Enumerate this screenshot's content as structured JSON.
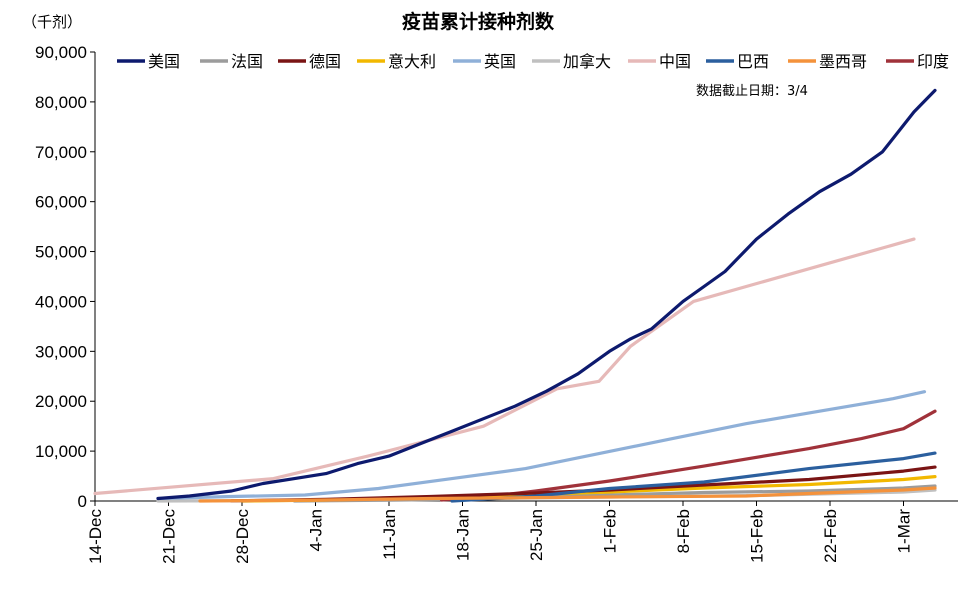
{
  "chart_data": {
    "type": "line",
    "title": "疫苗累计接种剂数",
    "unit_label": "（千剂）",
    "annotation": "数据截止日期：3/4",
    "x_ticks": [
      "14-Dec",
      "21-Dec",
      "28-Dec",
      "4-Jan",
      "11-Jan",
      "18-Jan",
      "25-Jan",
      "1-Feb",
      "8-Feb",
      "15-Feb",
      "22-Feb",
      "1-Mar"
    ],
    "x_tick_days": [
      0,
      7,
      14,
      21,
      28,
      35,
      42,
      49,
      56,
      63,
      70,
      77
    ],
    "y_ticks": [
      "0",
      "10,000",
      "20,000",
      "30,000",
      "40,000",
      "50,000",
      "60,000",
      "70,000",
      "80,000",
      "90,000"
    ],
    "ylim": [
      0,
      90000
    ],
    "grid": false,
    "legend_position": "top",
    "series": [
      {
        "name": "美国",
        "color": "#0d1a6e",
        "x": [
          "12-20",
          "12-23",
          "12-27",
          "12-30",
          "1-2",
          "1-5",
          "1-8",
          "1-11",
          "1-14",
          "1-17",
          "1-20",
          "1-23",
          "1-26",
          "1-29",
          "2-1",
          "2-3",
          "2-5",
          "2-8",
          "2-10",
          "2-12",
          "2-15",
          "2-18",
          "2-21",
          "2-24",
          "2-27",
          "3-2",
          "3-4"
        ],
        "y": [
          500,
          1000,
          2000,
          3500,
          4500,
          5500,
          7500,
          9000,
          11500,
          14000,
          16500,
          19000,
          22000,
          25500,
          30000,
          32500,
          34500,
          40000,
          43000,
          46000,
          52500,
          57500,
          62000,
          65500,
          70000,
          78000,
          82300
        ]
      },
      {
        "name": "法国",
        "color": "#9c9c9c",
        "x": [
          "1-2",
          "1-10",
          "1-20",
          "2-1",
          "2-10",
          "2-20",
          "3-1",
          "3-4"
        ],
        "y": [
          0,
          150,
          400,
          1200,
          1700,
          2000,
          2600,
          3000
        ]
      },
      {
        "name": "德国",
        "color": "#7a1414",
        "x": [
          "12-27",
          "1-5",
          "1-15",
          "1-25",
          "2-1",
          "2-10",
          "2-20",
          "3-1",
          "3-4"
        ],
        "y": [
          50,
          350,
          900,
          1600,
          2200,
          3200,
          4300,
          6000,
          6800
        ]
      },
      {
        "name": "意大利",
        "color": "#f2b800",
        "x": [
          "12-28",
          "1-5",
          "1-15",
          "1-25",
          "2-1",
          "2-10",
          "2-20",
          "3-1",
          "3-4"
        ],
        "y": [
          0,
          200,
          700,
          1300,
          1800,
          2600,
          3300,
          4300,
          4900
        ]
      },
      {
        "name": "英国",
        "color": "#8fb0d8",
        "x": [
          "12-20",
          "12-27",
          "1-3",
          "1-10",
          "1-17",
          "1-24",
          "1-31",
          "2-7",
          "2-14",
          "2-21",
          "2-28",
          "3-3"
        ],
        "y": [
          500,
          900,
          1200,
          2500,
          4500,
          6500,
          9500,
          12500,
          15500,
          18000,
          20500,
          21900
        ]
      },
      {
        "name": "加拿大",
        "color": "#c0c0c0",
        "x": [
          "12-20",
          "1-1",
          "1-15",
          "2-1",
          "2-15",
          "3-1",
          "3-4"
        ],
        "y": [
          0,
          100,
          400,
          800,
          1100,
          1800,
          2200
        ]
      },
      {
        "name": "中国",
        "color": "#e6b9b8",
        "x": [
          "12-14",
          "12-31",
          "1-9",
          "1-20",
          "1-27",
          "1-31",
          "2-3",
          "2-9",
          "3-2"
        ],
        "y": [
          1500,
          4500,
          9000,
          15000,
          22500,
          24000,
          31000,
          40000,
          52500
        ]
      },
      {
        "name": "巴西",
        "color": "#2b5f9e",
        "x": [
          "1-17",
          "1-25",
          "2-1",
          "2-10",
          "2-20",
          "3-1",
          "3-4"
        ],
        "y": [
          0,
          1000,
          2500,
          3800,
          6500,
          8500,
          9600
        ]
      },
      {
        "name": "墨西哥",
        "color": "#f4923b",
        "x": [
          "12-24",
          "1-5",
          "1-15",
          "2-1",
          "2-14",
          "2-20",
          "3-1",
          "3-4"
        ],
        "y": [
          0,
          200,
          500,
          800,
          1000,
          1500,
          2200,
          2600
        ]
      },
      {
        "name": "印度",
        "color": "#a0323a",
        "x": [
          "1-16",
          "1-20",
          "1-25",
          "2-1",
          "2-10",
          "2-20",
          "2-25",
          "3-1",
          "3-4"
        ],
        "y": [
          200,
          800,
          2000,
          4000,
          7000,
          10500,
          12500,
          14500,
          18000
        ]
      }
    ]
  }
}
